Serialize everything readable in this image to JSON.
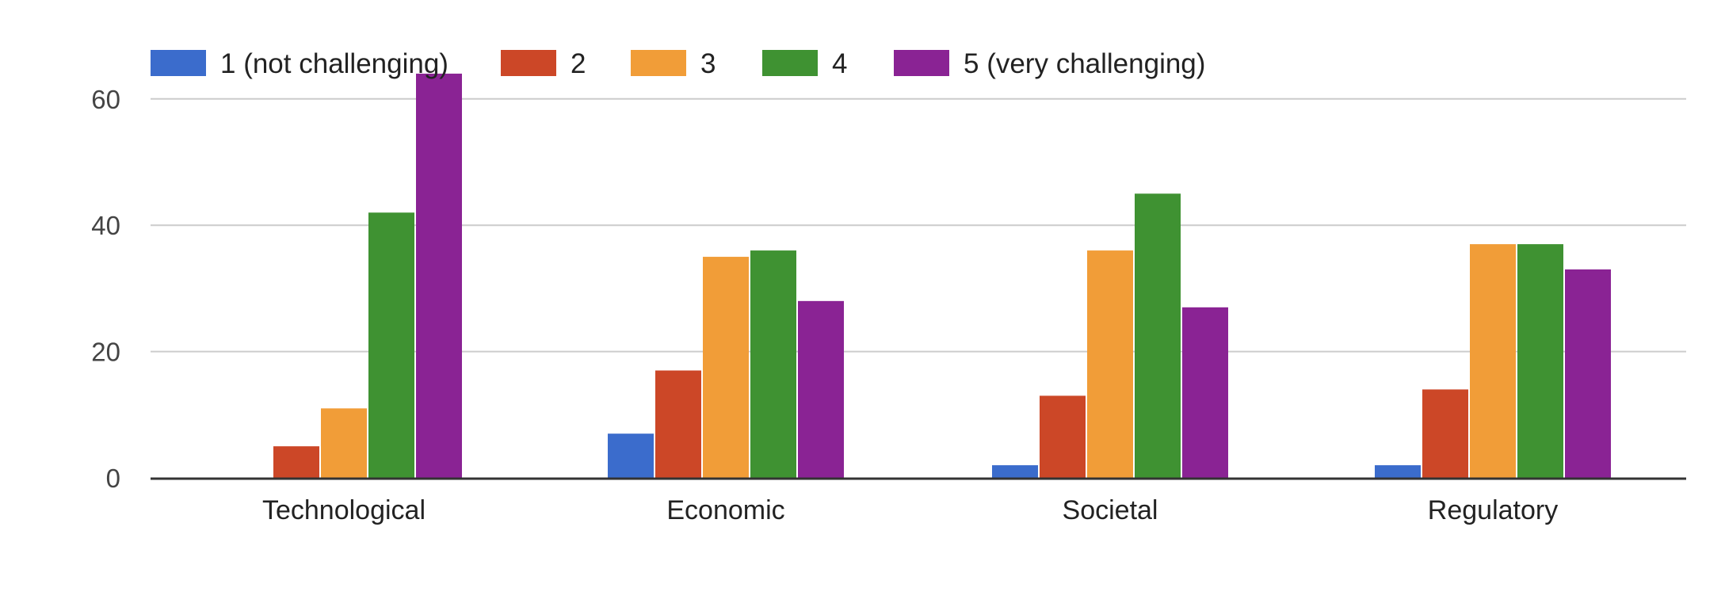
{
  "chart_data": {
    "type": "bar",
    "title": "",
    "xlabel": "",
    "ylabel": "",
    "categories": [
      "Technological",
      "Economic",
      "Societal",
      "Regulatory"
    ],
    "series": [
      {
        "name": "1 (not challenging)",
        "color": "#3b6ccc",
        "values": [
          0,
          7,
          2,
          2
        ]
      },
      {
        "name": "2",
        "color": "#cc4727",
        "values": [
          5,
          17,
          13,
          14
        ]
      },
      {
        "name": "3",
        "color": "#f19d38",
        "values": [
          11,
          35,
          36,
          37
        ]
      },
      {
        "name": "4",
        "color": "#3f9232",
        "values": [
          42,
          36,
          45,
          37
        ]
      },
      {
        "name": "5 (very challenging)",
        "color": "#8a2394",
        "values": [
          64,
          28,
          27,
          33
        ]
      }
    ],
    "ylim": [
      0,
      64
    ],
    "yticks": [
      0,
      20,
      40,
      60
    ],
    "grid": true,
    "legend_position": "top-left"
  }
}
